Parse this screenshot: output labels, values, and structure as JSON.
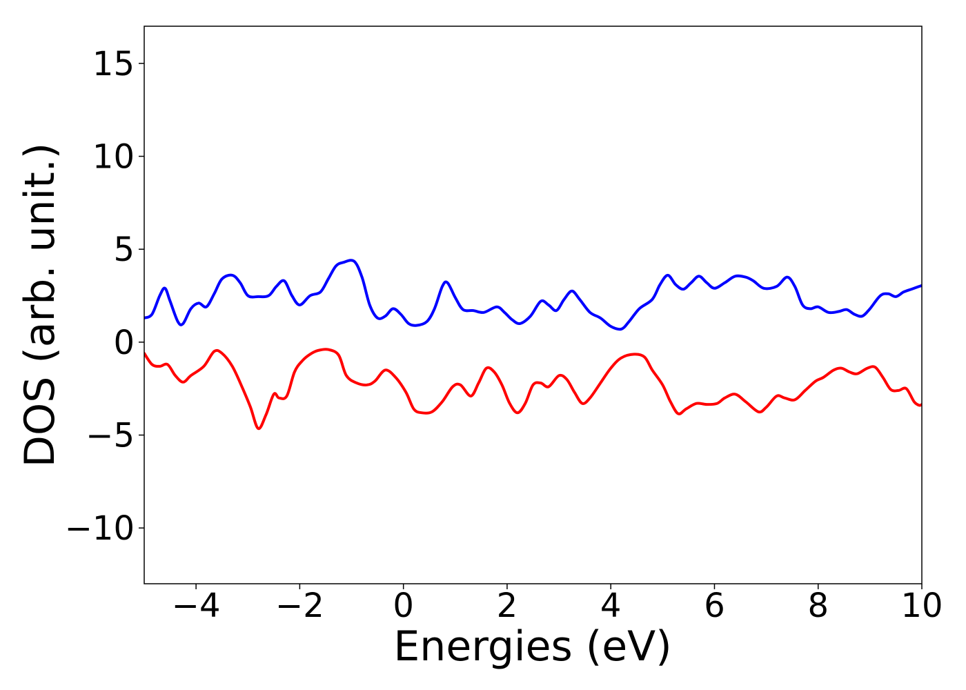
{
  "chart_data": {
    "type": "line",
    "xlabel": "Energies (eV)",
    "ylabel": "DOS (arb. unit.)",
    "xlim": [
      -5,
      10
    ],
    "ylim": [
      -13,
      17
    ],
    "grid": false,
    "legend": "none",
    "x_ticks": [
      -4,
      -2,
      0,
      2,
      4,
      6,
      8,
      10
    ],
    "x_tick_labels": [
      "−4",
      "−2",
      "0",
      "2",
      "4",
      "6",
      "8",
      "10"
    ],
    "y_ticks": [
      -10,
      -5,
      0,
      5,
      10,
      15
    ],
    "y_tick_labels": [
      "−10",
      "−5",
      "0",
      "5",
      "10",
      "15"
    ],
    "series": [
      {
        "color": "#0000ff",
        "points": [
          [
            -5.0,
            1.3
          ],
          [
            -4.85,
            1.5
          ],
          [
            -4.7,
            2.5
          ],
          [
            -4.6,
            2.9
          ],
          [
            -4.5,
            2.2
          ],
          [
            -4.35,
            1.1
          ],
          [
            -4.25,
            1.0
          ],
          [
            -4.1,
            1.8
          ],
          [
            -3.95,
            2.1
          ],
          [
            -3.8,
            1.9
          ],
          [
            -3.65,
            2.6
          ],
          [
            -3.5,
            3.4
          ],
          [
            -3.3,
            3.6
          ],
          [
            -3.15,
            3.2
          ],
          [
            -3.0,
            2.5
          ],
          [
            -2.8,
            2.45
          ],
          [
            -2.6,
            2.5
          ],
          [
            -2.45,
            3.0
          ],
          [
            -2.3,
            3.3
          ],
          [
            -2.15,
            2.5
          ],
          [
            -2.0,
            2.0
          ],
          [
            -1.8,
            2.5
          ],
          [
            -1.6,
            2.7
          ],
          [
            -1.45,
            3.4
          ],
          [
            -1.3,
            4.1
          ],
          [
            -1.15,
            4.3
          ],
          [
            -0.95,
            4.35
          ],
          [
            -0.8,
            3.5
          ],
          [
            -0.65,
            2.0
          ],
          [
            -0.5,
            1.3
          ],
          [
            -0.35,
            1.4
          ],
          [
            -0.2,
            1.8
          ],
          [
            -0.05,
            1.5
          ],
          [
            0.1,
            1.0
          ],
          [
            0.25,
            0.9
          ],
          [
            0.45,
            1.1
          ],
          [
            0.6,
            1.8
          ],
          [
            0.75,
            3.0
          ],
          [
            0.85,
            3.2
          ],
          [
            1.0,
            2.4
          ],
          [
            1.15,
            1.75
          ],
          [
            1.35,
            1.7
          ],
          [
            1.55,
            1.6
          ],
          [
            1.8,
            1.9
          ],
          [
            1.95,
            1.6
          ],
          [
            2.1,
            1.2
          ],
          [
            2.25,
            1.0
          ],
          [
            2.45,
            1.4
          ],
          [
            2.65,
            2.2
          ],
          [
            2.8,
            2.0
          ],
          [
            2.95,
            1.7
          ],
          [
            3.1,
            2.3
          ],
          [
            3.25,
            2.75
          ],
          [
            3.4,
            2.3
          ],
          [
            3.6,
            1.6
          ],
          [
            3.8,
            1.3
          ],
          [
            4.0,
            0.85
          ],
          [
            4.2,
            0.7
          ],
          [
            4.35,
            1.1
          ],
          [
            4.55,
            1.8
          ],
          [
            4.8,
            2.3
          ],
          [
            4.95,
            3.1
          ],
          [
            5.1,
            3.6
          ],
          [
            5.25,
            3.1
          ],
          [
            5.4,
            2.85
          ],
          [
            5.55,
            3.2
          ],
          [
            5.7,
            3.55
          ],
          [
            5.85,
            3.2
          ],
          [
            6.0,
            2.9
          ],
          [
            6.2,
            3.2
          ],
          [
            6.4,
            3.55
          ],
          [
            6.6,
            3.5
          ],
          [
            6.75,
            3.3
          ],
          [
            6.95,
            2.9
          ],
          [
            7.2,
            3.0
          ],
          [
            7.4,
            3.5
          ],
          [
            7.55,
            3.0
          ],
          [
            7.7,
            2.0
          ],
          [
            7.85,
            1.8
          ],
          [
            8.0,
            1.9
          ],
          [
            8.2,
            1.6
          ],
          [
            8.4,
            1.65
          ],
          [
            8.55,
            1.75
          ],
          [
            8.7,
            1.5
          ],
          [
            8.85,
            1.4
          ],
          [
            9.0,
            1.8
          ],
          [
            9.2,
            2.5
          ],
          [
            9.35,
            2.6
          ],
          [
            9.5,
            2.45
          ],
          [
            9.65,
            2.7
          ],
          [
            9.8,
            2.85
          ],
          [
            9.9,
            2.95
          ],
          [
            10.0,
            3.05
          ]
        ]
      },
      {
        "color": "#ff0000",
        "points": [
          [
            -5.0,
            -0.6
          ],
          [
            -4.85,
            -1.2
          ],
          [
            -4.7,
            -1.3
          ],
          [
            -4.55,
            -1.2
          ],
          [
            -4.4,
            -1.8
          ],
          [
            -4.25,
            -2.15
          ],
          [
            -4.1,
            -1.8
          ],
          [
            -3.85,
            -1.3
          ],
          [
            -3.65,
            -0.5
          ],
          [
            -3.5,
            -0.6
          ],
          [
            -3.3,
            -1.3
          ],
          [
            -3.1,
            -2.5
          ],
          [
            -2.95,
            -3.5
          ],
          [
            -2.8,
            -4.65
          ],
          [
            -2.65,
            -3.9
          ],
          [
            -2.5,
            -2.8
          ],
          [
            -2.4,
            -3.0
          ],
          [
            -2.25,
            -2.9
          ],
          [
            -2.1,
            -1.6
          ],
          [
            -1.95,
            -1.0
          ],
          [
            -1.8,
            -0.65
          ],
          [
            -1.65,
            -0.45
          ],
          [
            -1.45,
            -0.4
          ],
          [
            -1.25,
            -0.7
          ],
          [
            -1.1,
            -1.8
          ],
          [
            -0.9,
            -2.2
          ],
          [
            -0.7,
            -2.3
          ],
          [
            -0.55,
            -2.1
          ],
          [
            -0.35,
            -1.5
          ],
          [
            -0.15,
            -1.9
          ],
          [
            0.05,
            -2.7
          ],
          [
            0.2,
            -3.6
          ],
          [
            0.35,
            -3.8
          ],
          [
            0.55,
            -3.75
          ],
          [
            0.75,
            -3.2
          ],
          [
            0.95,
            -2.4
          ],
          [
            1.1,
            -2.3
          ],
          [
            1.3,
            -2.9
          ],
          [
            1.45,
            -2.2
          ],
          [
            1.6,
            -1.4
          ],
          [
            1.75,
            -1.6
          ],
          [
            1.9,
            -2.3
          ],
          [
            2.05,
            -3.3
          ],
          [
            2.2,
            -3.8
          ],
          [
            2.35,
            -3.3
          ],
          [
            2.5,
            -2.3
          ],
          [
            2.65,
            -2.2
          ],
          [
            2.8,
            -2.4
          ],
          [
            3.0,
            -1.8
          ],
          [
            3.15,
            -2.0
          ],
          [
            3.3,
            -2.7
          ],
          [
            3.45,
            -3.3
          ],
          [
            3.6,
            -3.0
          ],
          [
            3.8,
            -2.2
          ],
          [
            4.0,
            -1.4
          ],
          [
            4.2,
            -0.85
          ],
          [
            4.45,
            -0.65
          ],
          [
            4.65,
            -0.8
          ],
          [
            4.8,
            -1.5
          ],
          [
            5.0,
            -2.3
          ],
          [
            5.15,
            -3.2
          ],
          [
            5.3,
            -3.85
          ],
          [
            5.45,
            -3.6
          ],
          [
            5.65,
            -3.3
          ],
          [
            5.85,
            -3.35
          ],
          [
            6.05,
            -3.3
          ],
          [
            6.2,
            -3.0
          ],
          [
            6.4,
            -2.8
          ],
          [
            6.6,
            -3.2
          ],
          [
            6.85,
            -3.75
          ],
          [
            7.0,
            -3.5
          ],
          [
            7.2,
            -2.9
          ],
          [
            7.35,
            -3.0
          ],
          [
            7.55,
            -3.1
          ],
          [
            7.75,
            -2.6
          ],
          [
            7.95,
            -2.1
          ],
          [
            8.1,
            -1.9
          ],
          [
            8.3,
            -1.5
          ],
          [
            8.45,
            -1.4
          ],
          [
            8.6,
            -1.6
          ],
          [
            8.75,
            -1.7
          ],
          [
            8.95,
            -1.4
          ],
          [
            9.1,
            -1.35
          ],
          [
            9.25,
            -1.9
          ],
          [
            9.4,
            -2.55
          ],
          [
            9.55,
            -2.6
          ],
          [
            9.7,
            -2.5
          ],
          [
            9.85,
            -3.2
          ],
          [
            9.95,
            -3.4
          ],
          [
            10.0,
            -3.35
          ]
        ]
      }
    ]
  }
}
